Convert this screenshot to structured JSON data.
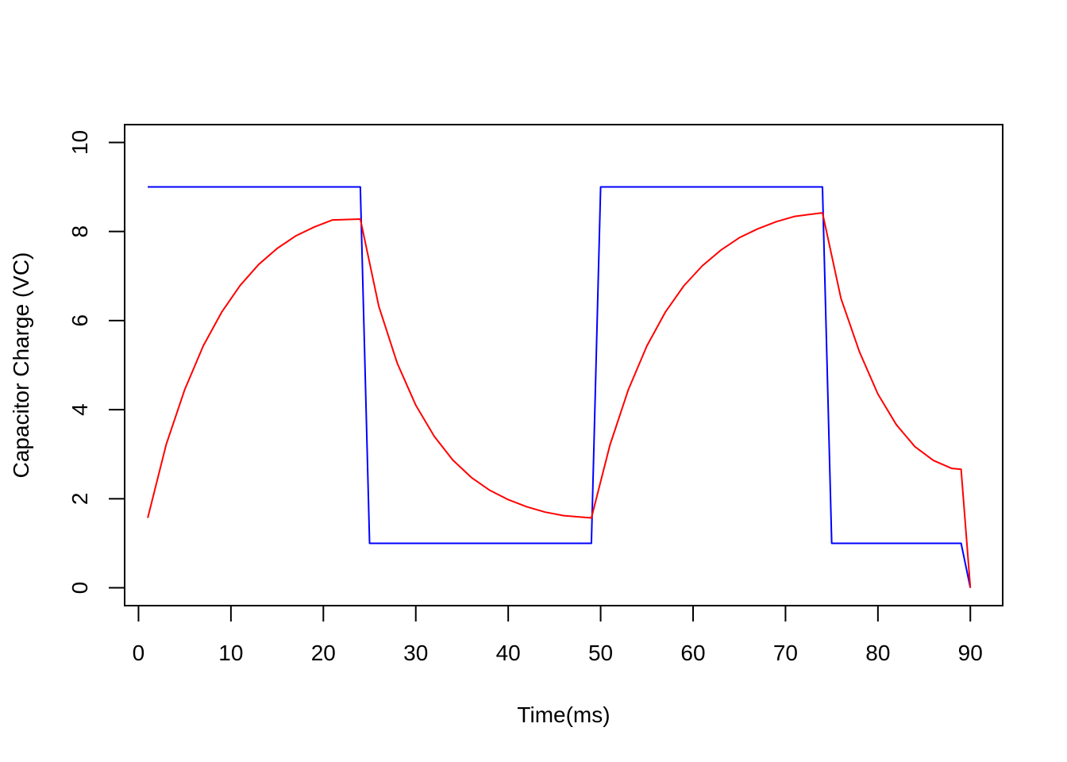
{
  "chart_data": {
    "type": "line",
    "title": "",
    "xlabel": "Time(ms)",
    "ylabel": "Capacitor Charge (VC)",
    "xlim": [
      -1.5,
      93.5
    ],
    "ylim": [
      -0.4,
      10.4
    ],
    "x_ticks": [
      0,
      10,
      20,
      30,
      40,
      50,
      60,
      70,
      80,
      90
    ],
    "y_ticks": [
      0,
      2,
      4,
      6,
      8,
      10
    ],
    "x_tick_labels": [
      "0",
      "10",
      "20",
      "30",
      "40",
      "50",
      "60",
      "70",
      "80",
      "90"
    ],
    "y_tick_labels": [
      "0",
      "2",
      "4",
      "6",
      "8",
      "10"
    ],
    "grid": false,
    "legend": "none",
    "series": [
      {
        "color": "#0000ff",
        "x": [
          1,
          24,
          25,
          49,
          50,
          74,
          75,
          89,
          90
        ],
        "y": [
          9,
          9,
          1,
          1,
          9,
          9,
          1,
          1,
          0
        ]
      },
      {
        "color": "#ff0000",
        "x": [
          1,
          3,
          5,
          7,
          9,
          11,
          13,
          15,
          17,
          19,
          21,
          24,
          26,
          28,
          30,
          32,
          34,
          36,
          38,
          40,
          42,
          44,
          46,
          49,
          51,
          53,
          55,
          57,
          59,
          61,
          63,
          65,
          67,
          69,
          71,
          74,
          76,
          78,
          80,
          82,
          84,
          86,
          88,
          89,
          90
        ],
        "y": [
          1.57,
          3.22,
          4.45,
          5.43,
          6.19,
          6.79,
          7.26,
          7.62,
          7.9,
          8.1,
          8.26,
          8.28,
          6.32,
          5.04,
          4.1,
          3.4,
          2.87,
          2.48,
          2.19,
          1.98,
          1.82,
          1.7,
          1.62,
          1.57,
          3.2,
          4.45,
          5.43,
          6.19,
          6.78,
          7.23,
          7.58,
          7.86,
          8.06,
          8.22,
          8.34,
          8.42,
          6.5,
          5.3,
          4.35,
          3.66,
          3.17,
          2.86,
          2.68,
          2.66,
          0
        ]
      }
    ]
  }
}
